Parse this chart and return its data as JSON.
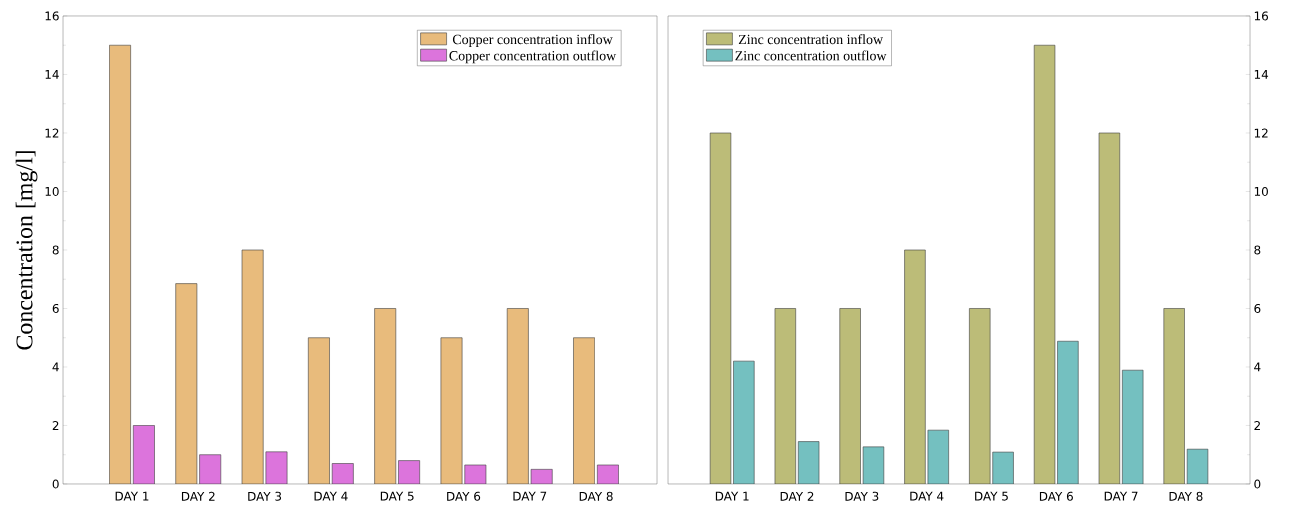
{
  "chart_data": [
    {
      "type": "bar",
      "ylabel": "Concentration [mg/l]",
      "categories": [
        "DAY 1",
        "DAY 2",
        "DAY 3",
        "DAY 4",
        "DAY 5",
        "DAY 6",
        "DAY 7",
        "DAY 8"
      ],
      "series": [
        {
          "name": "Copper concentration inflow",
          "color": "#e8bb7c",
          "values": [
            15,
            6.85,
            8,
            5,
            6,
            5,
            6,
            5
          ]
        },
        {
          "name": "Copper concentration outflow",
          "color": "#dc74dc",
          "values": [
            2,
            1.0,
            1.1,
            0.7,
            0.8,
            0.65,
            0.5,
            0.65
          ]
        }
      ],
      "ylim": [
        0,
        16
      ],
      "yticks": [
        0,
        2,
        4,
        6,
        8,
        10,
        12,
        14,
        16
      ],
      "legend": "top right"
    },
    {
      "type": "bar",
      "categories": [
        "DAY 1",
        "DAY 2",
        "DAY 3",
        "DAY 4",
        "DAY 5",
        "DAY 6",
        "DAY 7",
        "DAY 8"
      ],
      "series": [
        {
          "name": "Zinc concentration inflow",
          "color": "#bcbc78",
          "values": [
            12,
            6,
            6,
            8,
            6,
            15,
            12,
            6
          ]
        },
        {
          "name": "Zinc concentration outflow",
          "color": "#74c0c0",
          "values": [
            4.2,
            1.45,
            1.27,
            1.84,
            1.09,
            4.88,
            3.89,
            1.19
          ]
        }
      ],
      "ylim": [
        0,
        16
      ],
      "yticks": [
        0,
        2,
        4,
        6,
        8,
        10,
        12,
        14,
        16
      ],
      "legend": "top left"
    }
  ]
}
